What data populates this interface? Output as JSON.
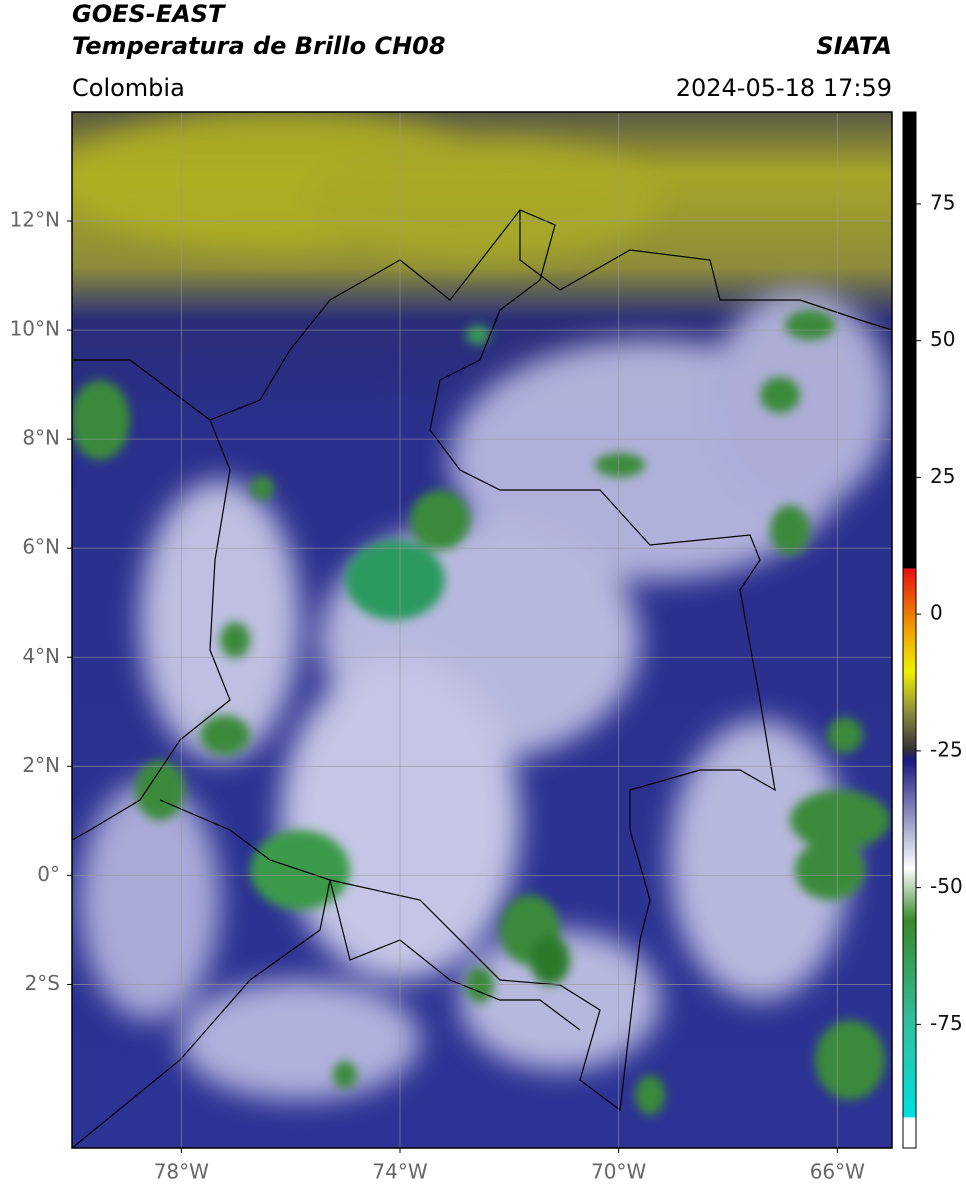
{
  "header": {
    "title": "GOES-EAST",
    "subtitle": "Temperatura de Brillo CH08",
    "source": "SIATA",
    "region": "Colombia",
    "datetime": "2024-05-18 17:59"
  },
  "map": {
    "xlim": [
      -80,
      -65
    ],
    "ylim": [
      -5,
      14
    ],
    "xticks": [
      {
        "value": -78,
        "label": "78°W"
      },
      {
        "value": -74,
        "label": "74°W"
      },
      {
        "value": -70,
        "label": "70°W"
      },
      {
        "value": -66,
        "label": "66°W"
      }
    ],
    "yticks": [
      {
        "value": 12,
        "label": "12°N"
      },
      {
        "value": 10,
        "label": "10°N"
      },
      {
        "value": 8,
        "label": "8°N"
      },
      {
        "value": 6,
        "label": "6°N"
      },
      {
        "value": 4,
        "label": "4°N"
      },
      {
        "value": 2,
        "label": "2°N"
      },
      {
        "value": 0,
        "label": "0°"
      },
      {
        "value": -2,
        "label": "2°S"
      }
    ],
    "grid": true
  },
  "colorbar": {
    "lim": [
      -97.6,
      91.8
    ],
    "ticks": [
      75,
      50,
      25,
      0,
      -25,
      -50,
      -75
    ]
  }
}
